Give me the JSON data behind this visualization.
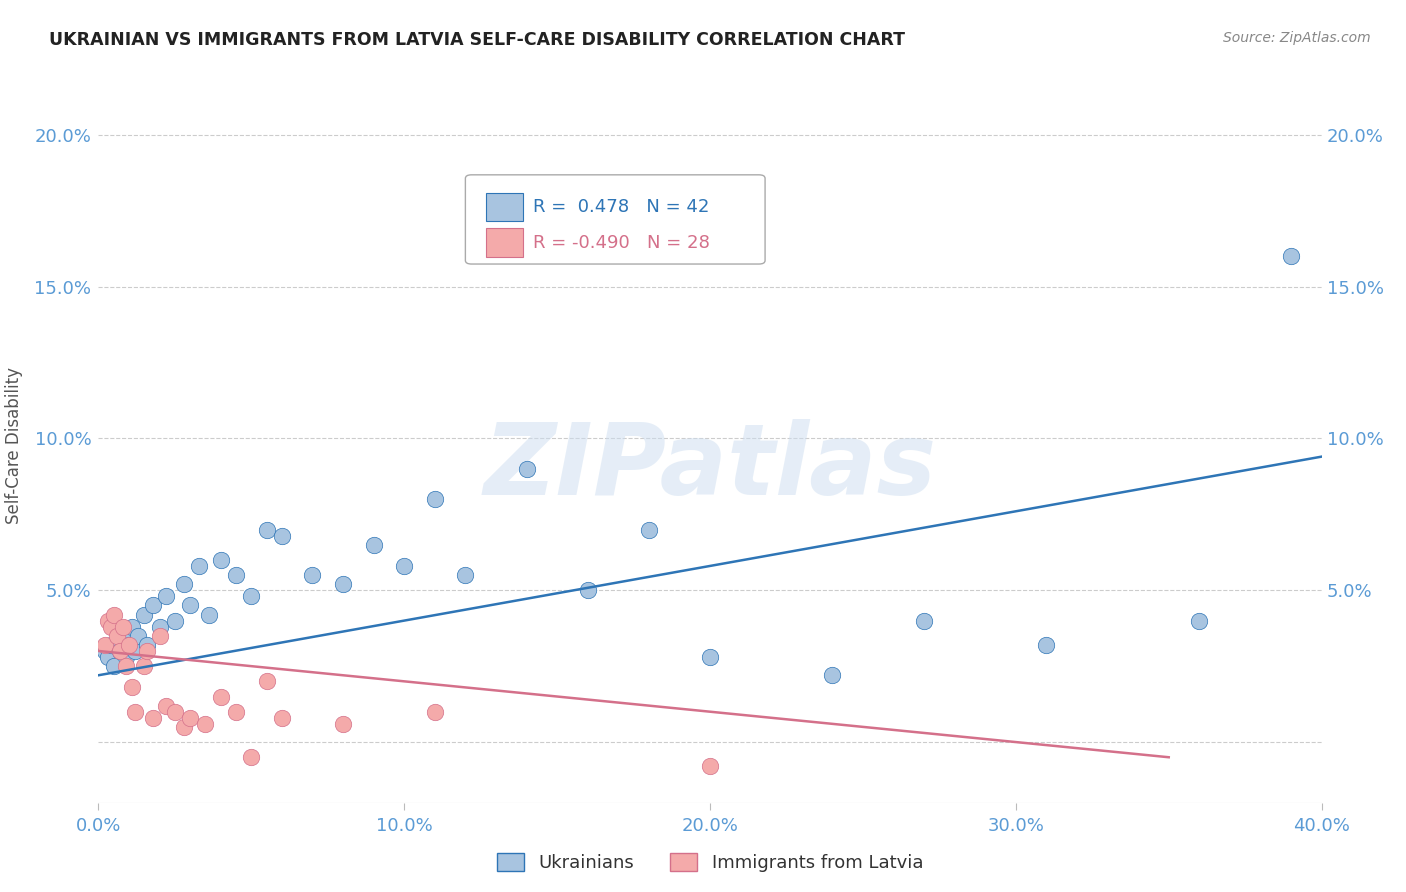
{
  "title": "UKRAINIAN VS IMMIGRANTS FROM LATVIA SELF-CARE DISABILITY CORRELATION CHART",
  "source": "Source: ZipAtlas.com",
  "ylabel": "Self-Care Disability",
  "xlim": [
    0.0,
    0.4
  ],
  "ylim": [
    -0.02,
    0.215
  ],
  "xticks": [
    0.0,
    0.1,
    0.2,
    0.3,
    0.4
  ],
  "xtick_labels": [
    "0.0%",
    "10.0%",
    "20.0%",
    "30.0%",
    "40.0%"
  ],
  "yticks": [
    0.0,
    0.05,
    0.1,
    0.15,
    0.2
  ],
  "ytick_labels": [
    "",
    "5.0%",
    "10.0%",
    "15.0%",
    "20.0%"
  ],
  "background_color": "#ffffff",
  "grid_color": "#cccccc",
  "axis_color": "#5b9bd5",
  "watermark_text": "ZIPatlas",
  "blue_r": 0.478,
  "blue_n": 42,
  "pink_r": -0.49,
  "pink_n": 28,
  "blue_color": "#a8c4e0",
  "pink_color": "#f4aaaa",
  "blue_edge": "#2e75b6",
  "pink_edge": "#d4708a",
  "blue_x": [
    0.002,
    0.003,
    0.004,
    0.005,
    0.006,
    0.007,
    0.008,
    0.009,
    0.01,
    0.011,
    0.012,
    0.013,
    0.015,
    0.016,
    0.018,
    0.02,
    0.022,
    0.025,
    0.028,
    0.03,
    0.033,
    0.036,
    0.04,
    0.045,
    0.05,
    0.055,
    0.06,
    0.07,
    0.08,
    0.09,
    0.1,
    0.11,
    0.12,
    0.14,
    0.16,
    0.18,
    0.2,
    0.24,
    0.27,
    0.31,
    0.36,
    0.39
  ],
  "blue_y": [
    0.03,
    0.028,
    0.032,
    0.025,
    0.033,
    0.03,
    0.035,
    0.028,
    0.032,
    0.038,
    0.03,
    0.035,
    0.042,
    0.032,
    0.045,
    0.038,
    0.048,
    0.04,
    0.052,
    0.045,
    0.058,
    0.042,
    0.06,
    0.055,
    0.048,
    0.07,
    0.068,
    0.055,
    0.052,
    0.065,
    0.058,
    0.08,
    0.055,
    0.09,
    0.05,
    0.07,
    0.028,
    0.022,
    0.04,
    0.032,
    0.04,
    0.16
  ],
  "pink_x": [
    0.002,
    0.003,
    0.004,
    0.005,
    0.006,
    0.007,
    0.008,
    0.009,
    0.01,
    0.011,
    0.012,
    0.015,
    0.016,
    0.018,
    0.02,
    0.022,
    0.025,
    0.028,
    0.03,
    0.035,
    0.04,
    0.045,
    0.05,
    0.055,
    0.06,
    0.08,
    0.11,
    0.2
  ],
  "pink_y": [
    0.032,
    0.04,
    0.038,
    0.042,
    0.035,
    0.03,
    0.038,
    0.025,
    0.032,
    0.018,
    0.01,
    0.025,
    0.03,
    0.008,
    0.035,
    0.012,
    0.01,
    0.005,
    0.008,
    0.006,
    0.015,
    0.01,
    -0.005,
    0.02,
    0.008,
    0.006,
    0.01,
    -0.008
  ],
  "blue_line_x": [
    0.0,
    0.4
  ],
  "blue_line_y": [
    0.022,
    0.094
  ],
  "pink_line_x": [
    0.0,
    0.35
  ],
  "pink_line_y": [
    0.03,
    -0.005
  ]
}
